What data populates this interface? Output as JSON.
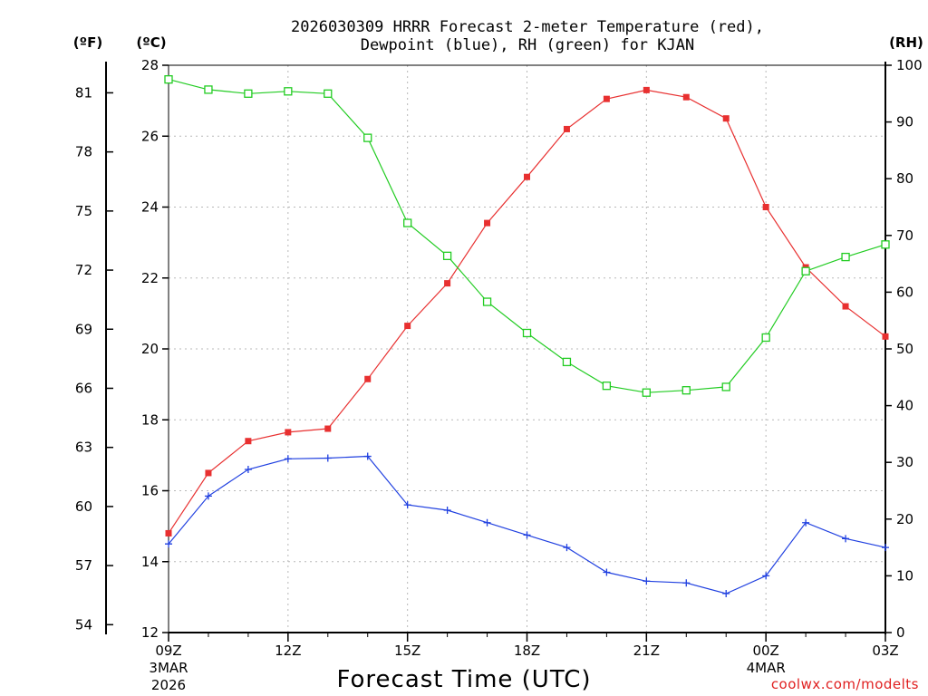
{
  "chart_data": {
    "type": "line",
    "title_line1": "2026030309 HRRR Forecast 2-meter Temperature (red),",
    "title_line2": "Dewpoint (blue), RH (green) for KJAN",
    "xlabel": "Forecast Time (UTC)",
    "credit": "coolwx.com/modelts",
    "units": {
      "fahrenheit": "(ºF)",
      "celsius": "(ºC)",
      "rh": "(RH)"
    },
    "x_hours": [
      9,
      10,
      11,
      12,
      13,
      14,
      15,
      16,
      17,
      18,
      19,
      20,
      21,
      22,
      23,
      24,
      25,
      26,
      27
    ],
    "x_ticks": [
      {
        "hour": 9,
        "label": "09Z",
        "sub1": "3MAR",
        "sub2": "2026"
      },
      {
        "hour": 12,
        "label": "12Z",
        "sub1": "",
        "sub2": ""
      },
      {
        "hour": 15,
        "label": "15Z",
        "sub1": "",
        "sub2": ""
      },
      {
        "hour": 18,
        "label": "18Z",
        "sub1": "",
        "sub2": ""
      },
      {
        "hour": 21,
        "label": "21Z",
        "sub1": "",
        "sub2": ""
      },
      {
        "hour": 24,
        "label": "00Z",
        "sub1": "4MAR",
        "sub2": ""
      },
      {
        "hour": 27,
        "label": "03Z",
        "sub1": "",
        "sub2": ""
      }
    ],
    "xlim": [
      9,
      27
    ],
    "celsius_lim": [
      12,
      28
    ],
    "celsius_ticks": [
      "12",
      "14",
      "16",
      "18",
      "20",
      "22",
      "24",
      "26",
      "28"
    ],
    "fahrenheit_ticks": [
      "54",
      "57",
      "60",
      "63",
      "66",
      "69",
      "72",
      "75",
      "78",
      "81"
    ],
    "rh_lim": [
      0,
      100
    ],
    "rh_ticks": [
      "0",
      "10",
      "20",
      "30",
      "40",
      "50",
      "60",
      "70",
      "80",
      "90",
      "100"
    ],
    "series": [
      {
        "name": "2-meter Temperature",
        "unit": "C",
        "color": "#e83030",
        "marker": "filled-square",
        "values": [
          14.8,
          16.5,
          17.4,
          17.65,
          17.75,
          19.15,
          20.65,
          21.85,
          23.55,
          24.85,
          26.2,
          27.05,
          27.3,
          27.1,
          26.5,
          24.0,
          22.3,
          21.2,
          20.35
        ]
      },
      {
        "name": "Dewpoint",
        "unit": "C",
        "color": "#2040e0",
        "marker": "plus",
        "values": [
          14.5,
          15.85,
          16.6,
          16.9,
          16.92,
          16.97,
          15.6,
          15.45,
          15.1,
          14.75,
          14.4,
          13.7,
          13.45,
          13.4,
          13.1,
          13.6,
          15.1,
          14.65,
          14.4
        ]
      },
      {
        "name": "RH",
        "unit": "%",
        "color": "#22cc22",
        "marker": "open-square",
        "values": [
          97.5,
          95.7,
          95.0,
          95.4,
          95.0,
          87.2,
          72.2,
          66.4,
          58.3,
          52.8,
          47.7,
          43.5,
          42.3,
          42.7,
          43.3,
          52.0,
          63.7,
          66.2,
          68.4
        ]
      }
    ]
  }
}
